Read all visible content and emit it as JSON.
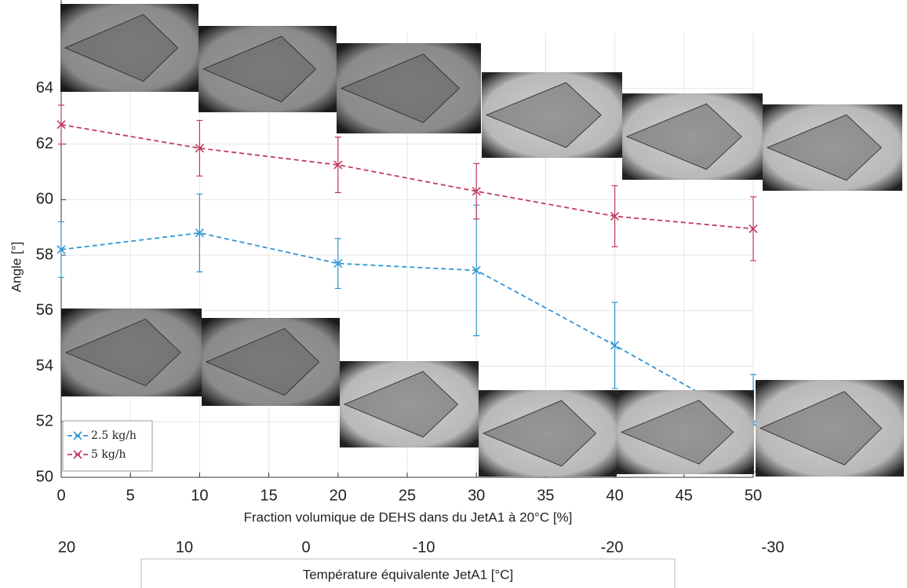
{
  "chart_data": {
    "type": "line",
    "x_label": "Fraction volumique de DEHS dans du JetA1 à 20°C [%]",
    "y_label": "Angle [°]",
    "x": [
      0,
      10,
      20,
      30,
      40,
      50
    ],
    "xlim": [
      0,
      50
    ],
    "xticks": [
      0,
      5,
      10,
      15,
      20,
      25,
      30,
      35,
      40,
      45,
      50
    ],
    "ylim": [
      50,
      66
    ],
    "yticks": [
      50,
      52,
      54,
      56,
      58,
      60,
      62,
      64
    ],
    "grid": true,
    "legend": "lower left",
    "series": [
      {
        "name": "2.5 kg/h",
        "color": "#2f97d4",
        "values": [
          58.2,
          58.8,
          57.7,
          57.45,
          54.75,
          51.95
        ],
        "errors": [
          1.0,
          1.4,
          0.9,
          2.35,
          1.55,
          1.75
        ]
      },
      {
        "name": "5 kg/h",
        "color": "#c23a5e",
        "values": [
          62.7,
          61.85,
          61.25,
          60.3,
          59.4,
          58.95
        ],
        "errors": [
          0.7,
          1.0,
          1.0,
          1.0,
          1.1,
          1.15
        ]
      }
    ],
    "secondary_axis": {
      "label": "Température équivalente JetA1 [°C]",
      "ticks": [
        20,
        10,
        0,
        -10,
        -20,
        -30
      ]
    }
  }
}
